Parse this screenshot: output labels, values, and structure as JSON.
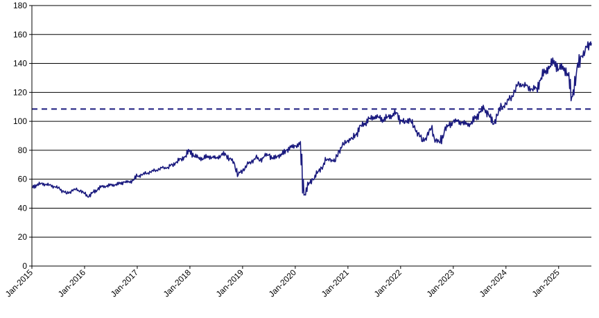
{
  "chart_data": {
    "type": "line",
    "title": "",
    "xlabel": "",
    "ylabel": "",
    "ylim": [
      0,
      180
    ],
    "yticks": [
      0,
      20,
      40,
      60,
      80,
      100,
      120,
      140,
      160,
      180
    ],
    "xlim": [
      "2015-01-01",
      "2025-08-15"
    ],
    "xticks": [
      "Jan-2015",
      "Jan-2016",
      "Jan-2017",
      "Jan-2018",
      "Jan-2019",
      "Jan-2020",
      "Jan-2021",
      "Jan-2022",
      "Jan-2023",
      "Jan-2024",
      "Jan-2025"
    ],
    "grid": "horizontal",
    "legend": "none",
    "reference_line": {
      "y": 108.5,
      "style": "dashed"
    },
    "series": [
      {
        "color": "#1a1a7e",
        "points": [
          [
            "2015-01-01",
            54
          ],
          [
            "2015-02-01",
            56
          ],
          [
            "2015-03-01",
            57
          ],
          [
            "2015-04-01",
            56.5
          ],
          [
            "2015-05-01",
            56
          ],
          [
            "2015-06-01",
            55
          ],
          [
            "2015-07-01",
            54
          ],
          [
            "2015-08-01",
            52
          ],
          [
            "2015-09-01",
            50
          ],
          [
            "2015-10-01",
            52
          ],
          [
            "2015-11-01",
            53
          ],
          [
            "2015-12-01",
            52
          ],
          [
            "2016-01-01",
            50
          ],
          [
            "2016-02-01",
            48
          ],
          [
            "2016-03-01",
            51
          ],
          [
            "2016-04-01",
            53
          ],
          [
            "2016-05-01",
            55
          ],
          [
            "2016-06-01",
            55
          ],
          [
            "2016-07-01",
            56
          ],
          [
            "2016-08-01",
            56
          ],
          [
            "2016-09-01",
            57
          ],
          [
            "2016-10-01",
            58
          ],
          [
            "2016-11-01",
            58
          ],
          [
            "2016-12-01",
            59
          ],
          [
            "2017-01-01",
            62
          ],
          [
            "2017-02-01",
            63
          ],
          [
            "2017-03-01",
            64
          ],
          [
            "2017-04-01",
            65
          ],
          [
            "2017-05-01",
            66
          ],
          [
            "2017-06-01",
            67
          ],
          [
            "2017-07-01",
            68
          ],
          [
            "2017-08-01",
            68
          ],
          [
            "2017-09-01",
            70
          ],
          [
            "2017-10-01",
            72
          ],
          [
            "2017-11-01",
            74
          ],
          [
            "2017-12-01",
            76
          ],
          [
            "2018-01-01",
            80
          ],
          [
            "2018-02-01",
            76
          ],
          [
            "2018-03-01",
            75
          ],
          [
            "2018-04-01",
            74
          ],
          [
            "2018-05-01",
            76
          ],
          [
            "2018-06-01",
            75
          ],
          [
            "2018-07-01",
            75
          ],
          [
            "2018-08-01",
            76
          ],
          [
            "2018-09-01",
            78
          ],
          [
            "2018-10-01",
            74
          ],
          [
            "2018-11-01",
            72
          ],
          [
            "2018-12-01",
            63
          ],
          [
            "2019-01-01",
            66
          ],
          [
            "2019-02-01",
            70
          ],
          [
            "2019-03-01",
            72
          ],
          [
            "2019-04-01",
            75
          ],
          [
            "2019-05-01",
            73
          ],
          [
            "2019-06-01",
            76
          ],
          [
            "2019-07-01",
            77
          ],
          [
            "2019-08-01",
            74
          ],
          [
            "2019-09-01",
            76
          ],
          [
            "2019-10-01",
            77
          ],
          [
            "2019-11-01",
            80
          ],
          [
            "2019-12-01",
            82
          ],
          [
            "2020-01-01",
            83
          ],
          [
            "2020-02-01",
            84
          ],
          [
            "2020-03-01",
            49
          ],
          [
            "2020-04-01",
            56
          ],
          [
            "2020-05-01",
            60
          ],
          [
            "2020-06-01",
            64
          ],
          [
            "2020-07-01",
            68
          ],
          [
            "2020-08-01",
            73
          ],
          [
            "2020-09-01",
            74
          ],
          [
            "2020-10-01",
            72
          ],
          [
            "2020-11-01",
            80
          ],
          [
            "2020-12-01",
            84
          ],
          [
            "2021-01-01",
            87
          ],
          [
            "2021-02-01",
            88
          ],
          [
            "2021-03-01",
            92
          ],
          [
            "2021-04-01",
            97
          ],
          [
            "2021-05-01",
            99
          ],
          [
            "2021-06-01",
            102
          ],
          [
            "2021-07-01",
            103
          ],
          [
            "2021-08-01",
            103
          ],
          [
            "2021-09-01",
            101
          ],
          [
            "2021-10-01",
            103
          ],
          [
            "2021-11-01",
            104
          ],
          [
            "2021-12-01",
            106
          ],
          [
            "2022-01-01",
            101
          ],
          [
            "2022-02-01",
            99
          ],
          [
            "2022-03-01",
            102
          ],
          [
            "2022-04-01",
            96
          ],
          [
            "2022-05-01",
            92
          ],
          [
            "2022-06-01",
            86
          ],
          [
            "2022-07-01",
            90
          ],
          [
            "2022-08-01",
            95
          ],
          [
            "2022-09-01",
            87
          ],
          [
            "2022-10-01",
            85
          ],
          [
            "2022-11-01",
            94
          ],
          [
            "2022-12-01",
            97
          ],
          [
            "2023-01-01",
            100
          ],
          [
            "2023-02-01",
            100
          ],
          [
            "2023-03-01",
            99
          ],
          [
            "2023-04-01",
            98
          ],
          [
            "2023-05-01",
            98
          ],
          [
            "2023-06-01",
            102
          ],
          [
            "2023-07-01",
            106
          ],
          [
            "2023-08-01",
            109
          ],
          [
            "2023-09-01",
            105
          ],
          [
            "2023-10-01",
            98
          ],
          [
            "2023-11-01",
            104
          ],
          [
            "2023-12-01",
            110
          ],
          [
            "2024-01-01",
            112
          ],
          [
            "2024-02-01",
            116
          ],
          [
            "2024-03-01",
            121
          ],
          [
            "2024-04-01",
            126
          ],
          [
            "2024-05-01",
            125
          ],
          [
            "2024-06-01",
            124
          ],
          [
            "2024-07-01",
            122
          ],
          [
            "2024-08-01",
            123
          ],
          [
            "2024-09-01",
            130
          ],
          [
            "2024-10-01",
            135
          ],
          [
            "2024-11-01",
            138
          ],
          [
            "2024-12-01",
            142
          ],
          [
            "2025-01-01",
            136
          ],
          [
            "2025-02-01",
            138
          ],
          [
            "2025-03-01",
            133
          ],
          [
            "2025-04-01",
            117
          ],
          [
            "2025-05-01",
            132
          ],
          [
            "2025-06-01",
            145
          ],
          [
            "2025-07-01",
            148
          ],
          [
            "2025-08-01",
            154
          ],
          [
            "2025-08-15",
            154
          ]
        ]
      }
    ]
  }
}
